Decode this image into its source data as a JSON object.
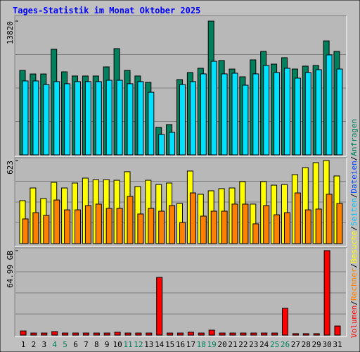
{
  "title": "Tages-Statistik im Monat Oktober 2025",
  "legend": [
    {
      "text": "Volumen",
      "color": "#ff0000"
    },
    {
      "text": "Rechner",
      "color": "#ff8000"
    },
    {
      "text": "Besuche",
      "color": "#ffff00"
    },
    {
      "text": "Seiten",
      "color": "#00c0ff"
    },
    {
      "text": "Dateien",
      "color": "#0040ff"
    },
    {
      "text": "Anfragen",
      "color": "#00805c"
    }
  ],
  "separator": "/",
  "chart_data": [
    {
      "type": "bar",
      "ylim": [
        0,
        13820
      ],
      "yticks": [
        13820
      ],
      "series": [
        {
          "color": "#00805c",
          "values": [
            8730,
            8360,
            8360,
            10910,
            8580,
            8150,
            8150,
            8150,
            9090,
            10980,
            8730,
            8150,
            7490,
            2840,
            3130,
            7780,
            8510,
            8950,
            13820,
            9750,
            8870,
            8070,
            9820,
            10690,
            9380,
            10040,
            8870,
            9170,
            9240,
            11780,
            10690
          ]
        },
        {
          "color": "#00e0ff",
          "values": [
            7640,
            7640,
            7270,
            7570,
            7350,
            7570,
            7570,
            7570,
            7710,
            7710,
            7350,
            7570,
            6470,
            2110,
            2330,
            7270,
            7570,
            8370,
            9670,
            8370,
            8440,
            7200,
            8370,
            9240,
            8510,
            8950,
            7930,
            8510,
            8800,
            10330,
            8870
          ]
        }
      ]
    },
    {
      "type": "bar",
      "ylim": [
        0,
        623
      ],
      "yticks": [
        623
      ],
      "series": [
        {
          "color": "#ffff00",
          "values": [
            322,
            417,
            338,
            459,
            417,
            454,
            491,
            480,
            480,
            475,
            539,
            428,
            475,
            443,
            454,
            301,
            544,
            370,
            396,
            412,
            417,
            465,
            296,
            465,
            438,
            443,
            517,
            570,
            607,
            623,
            507
          ]
        },
        {
          "color": "#ff8000",
          "values": [
            185,
            232,
            211,
            327,
            253,
            253,
            285,
            296,
            264,
            264,
            354,
            222,
            264,
            243,
            285,
            158,
            380,
            206,
            243,
            243,
            296,
            296,
            148,
            285,
            216,
            232,
            380,
            253,
            259,
            370,
            301
          ]
        }
      ]
    },
    {
      "type": "bar",
      "ylim": [
        0,
        64.99
      ],
      "yticks": [
        {
          "value": 64.99,
          "label": "64.99 GB"
        }
      ],
      "series": [
        {
          "color": "#ff0000",
          "values": [
            3.2,
            1.6,
            1.6,
            2.7,
            1.6,
            1.6,
            1.6,
            1.6,
            1.6,
            2.2,
            1.6,
            1.6,
            1.6,
            44.4,
            1.6,
            1.6,
            2.2,
            1.6,
            3.8,
            1.6,
            1.6,
            1.6,
            1.6,
            1.6,
            1.6,
            20.6,
            1.1,
            1.1,
            1.1,
            64.99,
            7.0
          ]
        }
      ],
      "categories": [
        "1",
        "2",
        "3",
        "4",
        "5",
        "6",
        "7",
        "8",
        "9",
        "10",
        "11",
        "12",
        "13",
        "14",
        "15",
        "16",
        "17",
        "18",
        "19",
        "20",
        "21",
        "22",
        "23",
        "24",
        "25",
        "26",
        "27",
        "28",
        "29",
        "30",
        "31"
      ],
      "category_color": "#000000",
      "weekend_color": "#00805c",
      "weekends": [
        3,
        4,
        10,
        11,
        17,
        18,
        24,
        25
      ]
    }
  ]
}
